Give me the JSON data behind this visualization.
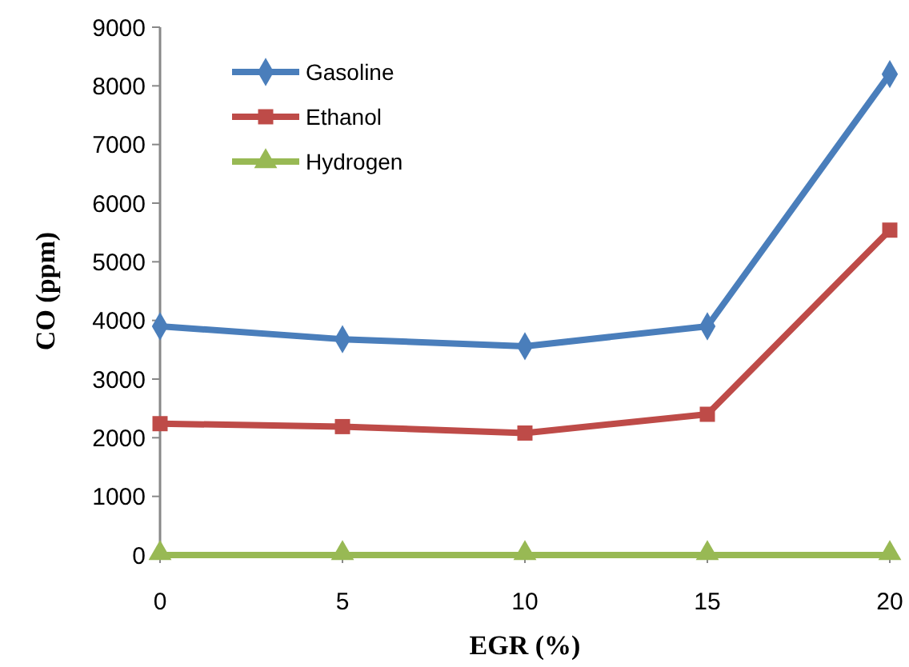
{
  "chart_data": {
    "type": "line",
    "xlabel": "EGR (%)",
    "ylabel": "CO (ppm)",
    "x": [
      0,
      5,
      10,
      15,
      20
    ],
    "series": [
      {
        "name": "Gasoline",
        "color": "#4a7ebb",
        "values": [
          3900,
          3680,
          3560,
          3900,
          8200
        ],
        "marker": "diamond"
      },
      {
        "name": "Ethanol",
        "color": "#be4b48",
        "values": [
          2240,
          2190,
          2080,
          2400,
          5540
        ],
        "marker": "square"
      },
      {
        "name": "Hydrogen",
        "color": "#98b954",
        "values": [
          0,
          0,
          0,
          0,
          0
        ],
        "marker": "triangle"
      }
    ],
    "xlim": [
      0,
      20
    ],
    "xticks": [
      0,
      5,
      10,
      15,
      20
    ],
    "ylim": [
      0,
      9000
    ],
    "yticks": [
      0,
      1000,
      2000,
      3000,
      4000,
      5000,
      6000,
      7000,
      8000,
      9000
    ],
    "grid": false,
    "legend": "top left"
  }
}
